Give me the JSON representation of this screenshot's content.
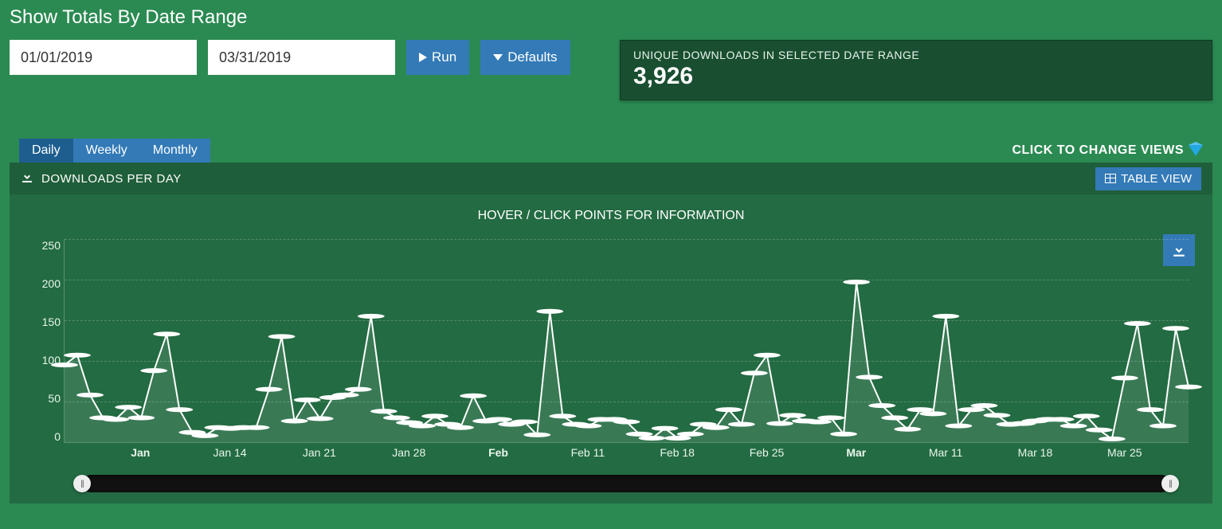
{
  "header": {
    "title": "Show Totals By Date Range",
    "start_date": "01/01/2019",
    "end_date": "03/31/2019",
    "run_label": "Run",
    "defaults_label": "Defaults"
  },
  "stat": {
    "label": "UNIQUE DOWNLOADS IN SELECTED DATE RANGE",
    "value": "3,926"
  },
  "tabs": {
    "items": [
      "Daily",
      "Weekly",
      "Monthly"
    ],
    "active_index": 0,
    "change_views_label": "CLICK TO CHANGE VIEWS"
  },
  "chart_header": {
    "title": "DOWNLOADS PER DAY",
    "table_view_label": "TABLE VIEW"
  },
  "chart": {
    "subtitle": "HOVER / CLICK POINTS FOR INFORMATION",
    "type": "line",
    "line_color": "#ffffff",
    "marker_color": "#ffffff",
    "marker_radius": 3.5,
    "line_width": 2,
    "area_fill": "rgba(255,255,255,0.10)",
    "background_color": "#236b42",
    "grid_color": "rgba(255,255,255,0.22)",
    "ylim": [
      0,
      250
    ],
    "ytick_step": 50,
    "y_ticks": [
      250,
      200,
      150,
      100,
      50,
      0
    ],
    "x_ticks": [
      {
        "index": 6,
        "label": "Jan",
        "bold": true
      },
      {
        "index": 13,
        "label": "Jan 14",
        "bold": false
      },
      {
        "index": 20,
        "label": "Jan 21",
        "bold": false
      },
      {
        "index": 27,
        "label": "Jan 28",
        "bold": false
      },
      {
        "index": 34,
        "label": "Feb",
        "bold": true
      },
      {
        "index": 41,
        "label": "Feb 11",
        "bold": false
      },
      {
        "index": 48,
        "label": "Feb 18",
        "bold": false
      },
      {
        "index": 55,
        "label": "Feb 25",
        "bold": false
      },
      {
        "index": 62,
        "label": "Mar",
        "bold": true
      },
      {
        "index": 69,
        "label": "Mar 11",
        "bold": false
      },
      {
        "index": 76,
        "label": "Mar 18",
        "bold": false
      },
      {
        "index": 83,
        "label": "Mar 25",
        "bold": false
      }
    ],
    "values": [
      95,
      107,
      58,
      30,
      28,
      43,
      30,
      88,
      133,
      40,
      12,
      8,
      18,
      17,
      18,
      18,
      65,
      130,
      26,
      52,
      29,
      55,
      58,
      65,
      155,
      38,
      30,
      24,
      20,
      32,
      22,
      18,
      57,
      26,
      28,
      22,
      25,
      9,
      161,
      32,
      22,
      20,
      28,
      28,
      25,
      10,
      5,
      17,
      5,
      10,
      22,
      18,
      40,
      22,
      85,
      107,
      23,
      33,
      26,
      25,
      30,
      10,
      197,
      80,
      45,
      30,
      16,
      40,
      35,
      155,
      20,
      40,
      45,
      33,
      22,
      23,
      26,
      28,
      28,
      20,
      32,
      15,
      4,
      79,
      146,
      40,
      20,
      140,
      68
    ]
  },
  "colors": {
    "page_bg": "#2b8a52",
    "panel_bg": "#236b42",
    "panel_header_bg": "#1f5e3a",
    "stat_bg": "#194e31",
    "btn_primary": "#337ab7",
    "tab_active": "#1d5e8f"
  }
}
